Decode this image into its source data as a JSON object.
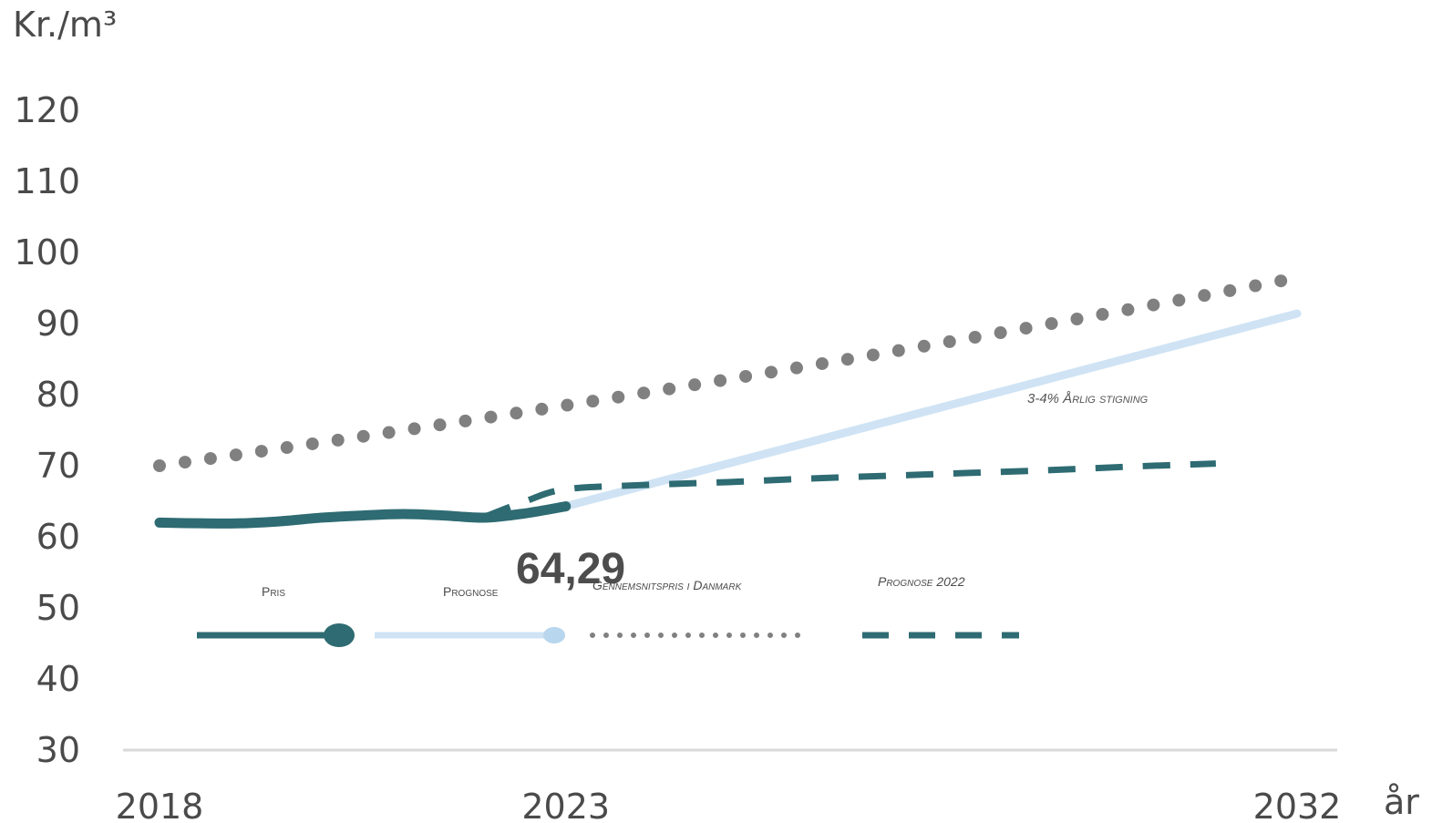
{
  "chart_data": {
    "type": "line",
    "ylabel": "Kr./m³",
    "xlabel": "år",
    "ylim": [
      30,
      120
    ],
    "yticks": [
      30,
      40,
      50,
      60,
      70,
      80,
      90,
      100,
      110,
      120
    ],
    "xlim": [
      2018,
      2032
    ],
    "xticks": [
      2018,
      2023,
      2032
    ],
    "grid": false,
    "legend_placement": "inside-bottom-left",
    "series": [
      {
        "name": "Pris",
        "style": "solid",
        "color": "#2e6b72",
        "x": [
          2018,
          2018.5,
          2019,
          2019.5,
          2020,
          2020.5,
          2021,
          2021.5,
          2022,
          2022.5,
          2023
        ],
        "y": [
          62.0,
          61.9,
          61.9,
          62.2,
          62.7,
          63.0,
          63.2,
          63.0,
          62.7,
          63.3,
          64.29
        ]
      },
      {
        "name": "Prognose",
        "style": "solid",
        "color": "#cfe3f4",
        "x": [
          2023,
          2032
        ],
        "y": [
          64.29,
          91.4
        ]
      },
      {
        "name": "Gennemsnitspris i Danmark",
        "style": "dotted",
        "color": "#808080",
        "x": [
          2018,
          2031.8
        ],
        "y": [
          70.0,
          96.0
        ]
      },
      {
        "name": "Prognose 2022",
        "style": "dashed",
        "color": "#2e6b72",
        "x": [
          2022,
          2022.5,
          2023,
          2024,
          2025,
          2026,
          2027,
          2028,
          2029,
          2030,
          2031
        ],
        "y": [
          62.8,
          65.0,
          66.7,
          67.3,
          67.7,
          68.2,
          68.6,
          69.0,
          69.4,
          69.9,
          70.3
        ]
      }
    ],
    "annotations": [
      {
        "text": "64,29",
        "x": 2023,
        "y": 64.29
      },
      {
        "text": "3-4% Årlig stigning",
        "x": 2030,
        "y": 80
      }
    ]
  }
}
